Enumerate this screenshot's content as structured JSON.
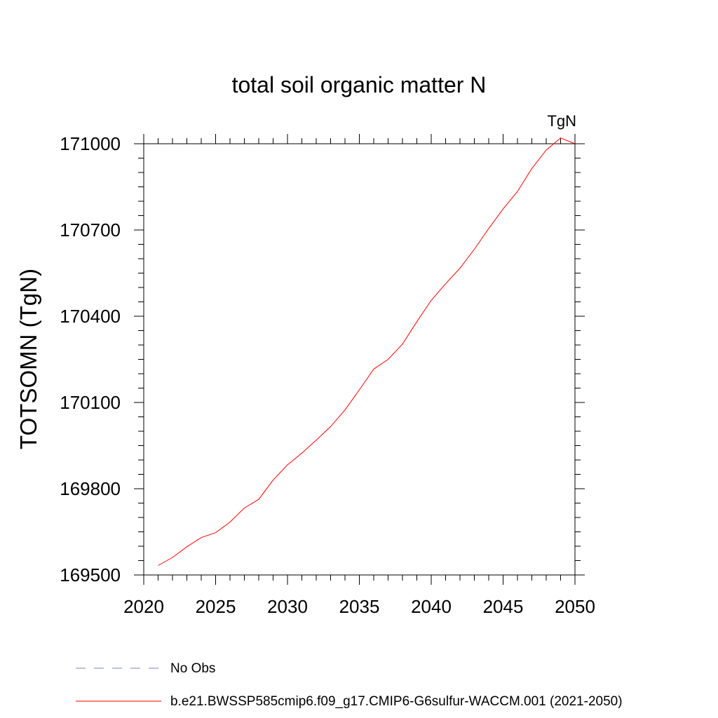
{
  "chart_data": {
    "type": "line",
    "title": "total soil organic matter N",
    "units_label": "TgN",
    "ylabel": "TOTSOMN  (TgN)",
    "xlabel": "",
    "xlim": [
      2020,
      2050
    ],
    "ylim": [
      169500,
      171000
    ],
    "x_ticks": [
      2020,
      2025,
      2030,
      2035,
      2040,
      2045,
      2050
    ],
    "y_ticks": [
      169500,
      169800,
      170100,
      170400,
      170700,
      171000
    ],
    "x_tick_labels": [
      "2020",
      "2025",
      "2030",
      "2035",
      "2040",
      "2045",
      "2050"
    ],
    "y_tick_labels": [
      "169500",
      "169800",
      "170100",
      "170400",
      "170700",
      "171000"
    ],
    "x_minor_step": 1,
    "y_minor_step": 50,
    "grid": false,
    "legend_placement": "bottom",
    "series": [
      {
        "name": "b.e21.BWSSP585cmip6.f09_g17.CMIP6-G6sulfur-WACCM.001 (2021-2050)",
        "color": "#ff0000",
        "style": "solid",
        "x": [
          2021,
          2022,
          2023,
          2024,
          2025,
          2026,
          2027,
          2028,
          2029,
          2030,
          2031,
          2032,
          2033,
          2034,
          2035,
          2036,
          2037,
          2038,
          2039,
          2040,
          2041,
          2042,
          2043,
          2044,
          2045,
          2046,
          2047,
          2048,
          2049,
          2050
        ],
        "values": [
          169533,
          169561,
          169598,
          169630,
          169647,
          169684,
          169733,
          169763,
          169830,
          169883,
          169924,
          169969,
          170016,
          170074,
          170144,
          170216,
          170250,
          170303,
          170381,
          170455,
          170513,
          170567,
          170633,
          170705,
          170773,
          170834,
          170914,
          170978,
          171020,
          171000
        ]
      }
    ],
    "legend": [
      {
        "label": "No Obs",
        "color": "#7f7fbf",
        "style": "dashed"
      },
      {
        "label": "b.e21.BWSSP585cmip6.f09_g17.CMIP6-G6sulfur-WACCM.001 (2021-2050)",
        "color": "#ff0000",
        "style": "solid"
      }
    ]
  }
}
